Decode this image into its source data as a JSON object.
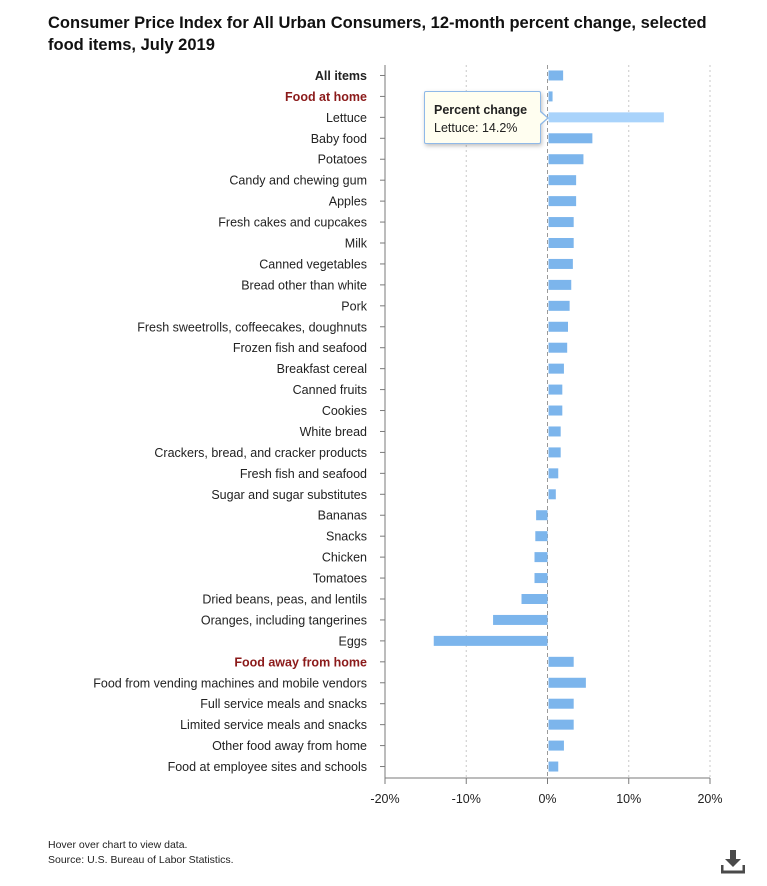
{
  "chart_data": {
    "type": "bar",
    "orientation": "horizontal",
    "title": "Consumer Price Index for All Urban Consumers, 12-month percent change, selected food items, July 2019",
    "xlabel": "",
    "ylabel": "",
    "xlim": [
      -20,
      20
    ],
    "xticks": [
      "-20%",
      "-10%",
      "0%",
      "10%",
      "20%"
    ],
    "xtick_values": [
      -20,
      -10,
      0,
      10,
      20
    ],
    "grid": true,
    "categories": [
      "All items",
      "Food at home",
      "Lettuce",
      "Baby food",
      "Potatoes",
      "Candy and chewing gum",
      "Apples",
      "Fresh cakes and cupcakes",
      "Milk",
      "Canned vegetables",
      "Bread other than white",
      "Pork",
      "Fresh sweetrolls, coffeecakes, doughnuts",
      "Frozen fish and seafood",
      "Breakfast cereal",
      "Canned fruits",
      "Cookies",
      "White bread",
      "Crackers, bread, and cracker products",
      "Fresh fish and seafood",
      "Sugar and sugar substitutes",
      "Bananas",
      "Snacks",
      "Chicken",
      "Tomatoes",
      "Dried beans, peas, and lentils",
      "Oranges, including tangerines",
      "Eggs",
      "Food away from home",
      "Food from vending machines and mobile vendors",
      "Full service meals and snacks",
      "Limited service meals and snacks",
      "Other food away from home",
      "Food at employee sites and schools"
    ],
    "values": [
      1.8,
      0.5,
      14.2,
      5.4,
      4.3,
      3.4,
      3.4,
      3.1,
      3.1,
      3.0,
      2.8,
      2.6,
      2.4,
      2.3,
      1.9,
      1.7,
      1.7,
      1.5,
      1.5,
      1.2,
      0.9,
      -1.4,
      -1.5,
      -1.6,
      -1.6,
      -3.2,
      -6.7,
      -14.0,
      3.1,
      4.6,
      3.1,
      3.1,
      1.9,
      1.2
    ],
    "category_styles": [
      "bold",
      "heading",
      "",
      "",
      "",
      "",
      "",
      "",
      "",
      "",
      "",
      "",
      "",
      "",
      "",
      "",
      "",
      "",
      "",
      "",
      "",
      "",
      "",
      "",
      "",
      "",
      "",
      "",
      "heading",
      "",
      "",
      "",
      "",
      ""
    ],
    "series_name": "Percent change",
    "highlighted_index": 2
  },
  "colors": {
    "bar": "#7cb5ec",
    "bar_highlight": "#a9d3fb",
    "heading": "#8b1a1a",
    "axis": "#7a7a7a",
    "grid": "#c8c8c8"
  },
  "tooltip": {
    "title": "Percent change",
    "body": "Lettuce: 14.2%"
  },
  "notes": {
    "hover": "Hover over chart to view data.",
    "source": "Source: U.S. Bureau of Labor Statistics."
  },
  "icons": {
    "download": "download-icon"
  }
}
